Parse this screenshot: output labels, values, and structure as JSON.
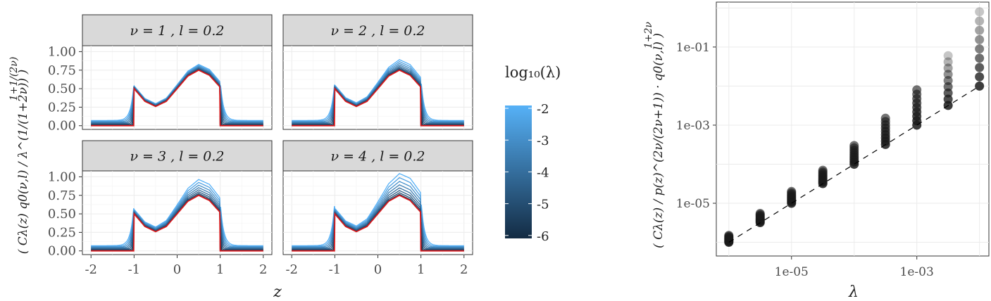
{
  "chart_data": [
    {
      "type": "line",
      "title": "",
      "xlabel": "z",
      "ylabel": "(C_λ(z) q0(ν,l) / λ^{1/(1+2ν)})^{1+1/(2ν)}",
      "xlim": [
        -2,
        2
      ],
      "ylim": [
        0,
        1.0
      ],
      "x_ticks": [
        "-2",
        "-1",
        "0",
        "1",
        "2"
      ],
      "y_ticks": [
        "0.00",
        "0.25",
        "0.50",
        "0.75",
        "1.00"
      ],
      "grid": true,
      "legend": {
        "title": "log10(λ)",
        "type": "colorbar",
        "ticks": [
          "-2",
          "-3",
          "-4",
          "-5",
          "-6"
        ],
        "low_color": "#132B43",
        "high_color": "#56B1F7",
        "position": "right"
      },
      "reference_color": "#D7191C",
      "panels": [
        {
          "label": "ν = 1 , l = 0.2",
          "nu": 1,
          "l": 0.2,
          "max_curve_peak": 0.81,
          "min_curve_peak": 0.75
        },
        {
          "label": "ν = 2 , l = 0.2",
          "nu": 2,
          "l": 0.2,
          "max_curve_peak": 0.89,
          "min_curve_peak": 0.75
        },
        {
          "label": "ν = 3 , l = 0.2",
          "nu": 3,
          "l": 0.2,
          "max_curve_peak": 0.98,
          "min_curve_peak": 0.75
        },
        {
          "label": "ν = 4 , l = 0.2",
          "nu": 4,
          "l": 0.2,
          "max_curve_peak": 1.08,
          "min_curve_peak": 0.75
        }
      ],
      "reference_curve": {
        "x": [
          -2,
          -1.001,
          -1,
          -0.75,
          -0.5,
          -0.25,
          0,
          0.25,
          0.5,
          0.75,
          0.999,
          1,
          2
        ],
        "y": [
          0,
          0,
          0.5,
          0.33,
          0.26,
          0.33,
          0.5,
          0.67,
          0.75,
          0.68,
          0.52,
          0,
          0
        ]
      },
      "series_lambda_log10": [
        -2,
        -2.5,
        -3,
        -3.5,
        -4,
        -4.5,
        -5,
        -5.5,
        -6
      ]
    },
    {
      "type": "scatter",
      "title": "",
      "xlabel": "λ",
      "ylabel": "(C_λ(z) / p(z)^{2ν/(2ν+1)} · q0(ν,l))^{1+2ν}",
      "xscale": "log",
      "yscale": "log",
      "x_ticks": [
        "1e-05",
        "1e-03"
      ],
      "y_ticks": [
        "1e-05",
        "1e-03",
        "1e-01"
      ],
      "grid": true,
      "x": [
        1e-06,
        3.16e-06,
        1e-05,
        3.16e-05,
        0.0001,
        0.000316,
        0.001,
        0.00316,
        0.01
      ],
      "y_min": [
        1e-06,
        3.2e-06,
        1e-05,
        3.2e-05,
        0.0001,
        0.00032,
        0.001,
        0.0032,
        0.01
      ],
      "y_max": [
        1.5e-06,
        5.5e-06,
        2e-05,
        7e-05,
        0.0003,
        0.0015,
        0.008,
        0.06,
        0.8
      ],
      "reference_line": {
        "style": "dashed",
        "color": "#000000",
        "from": [
          1e-06,
          1e-06
        ],
        "to": [
          0.01,
          0.01
        ]
      }
    }
  ]
}
